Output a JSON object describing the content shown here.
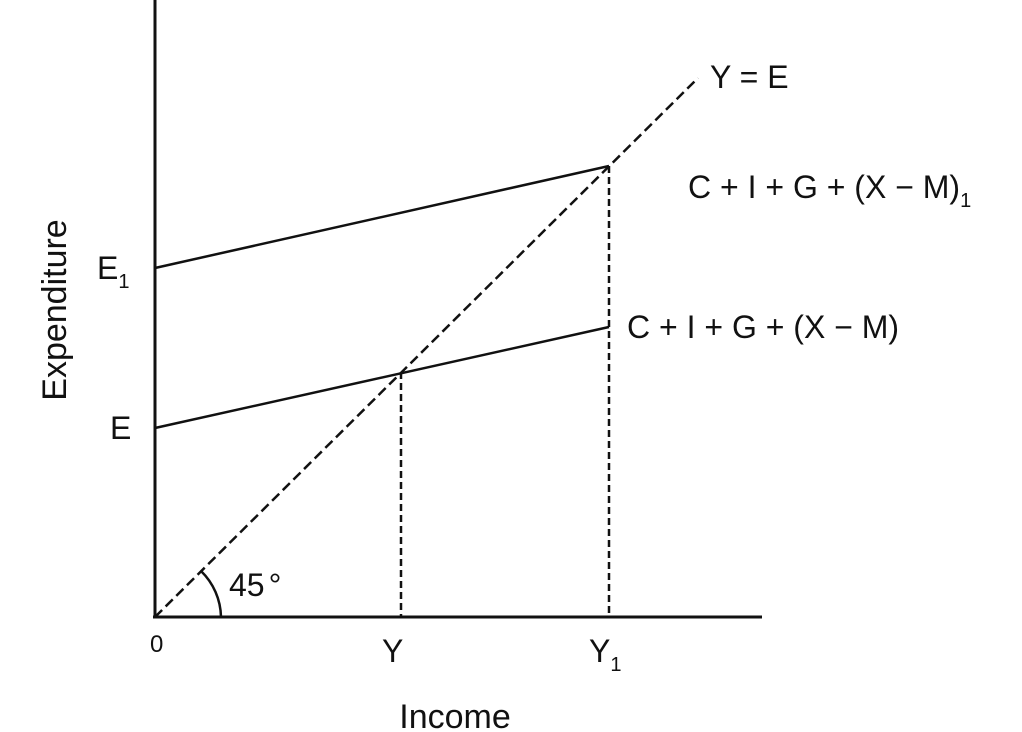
{
  "axes": {
    "x_label": "Income",
    "y_label": "Expenditure",
    "origin_label": "0"
  },
  "x_ticks": [
    {
      "main": "Y",
      "sub": ""
    },
    {
      "main": "Y",
      "sub": "1"
    }
  ],
  "y_ticks": [
    {
      "main": "E",
      "sub": ""
    },
    {
      "main": "E",
      "sub": "1"
    }
  ],
  "lines": {
    "guide_label": "Y = E",
    "aggregate_label": "C + I + G + (X − M)",
    "aggregate_shifted_label": "C + I + G + (X − M)",
    "aggregate_shifted_sub": "1"
  },
  "angle": {
    "value": "45",
    "unit": "°"
  }
}
